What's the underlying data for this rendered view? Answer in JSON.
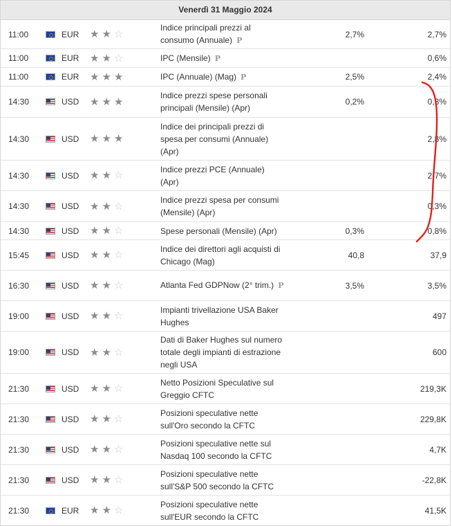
{
  "header": {
    "date": "Venerdì 31 Maggio 2024"
  },
  "icons": {
    "eu": "eu-flag-icon",
    "us": "us-flag-icon",
    "star": "star-icon",
    "prelim": "preliminary-icon"
  },
  "annotation_color": "#e02020",
  "rows": [
    {
      "time": "11:00",
      "flag": "eu",
      "currency": "EUR",
      "importance": 2,
      "event": "Indice principali prezzi al consumo (Annuale)",
      "prelim": true,
      "actual": "",
      "forecast": "2,7%",
      "previous": "2,7%"
    },
    {
      "time": "11:00",
      "flag": "eu",
      "currency": "EUR",
      "importance": 2,
      "event": "IPC (Mensile)",
      "prelim": true,
      "actual": "",
      "forecast": "",
      "previous": "0,6%"
    },
    {
      "time": "11:00",
      "flag": "eu",
      "currency": "EUR",
      "importance": 3,
      "event": "IPC (Annuale) (Mag)",
      "prelim": true,
      "actual": "",
      "forecast": "2,5%",
      "previous": "2,4%"
    },
    {
      "time": "14:30",
      "flag": "us",
      "currency": "USD",
      "importance": 3,
      "event": "Indice prezzi spese personali principali (Mensile) (Apr)",
      "prelim": false,
      "actual": "",
      "forecast": "0,2%",
      "previous": "0,3%"
    },
    {
      "time": "14:30",
      "flag": "us",
      "currency": "USD",
      "importance": 3,
      "event": "Indice dei principali prezzi di spesa per consumi (Annuale) (Apr)",
      "prelim": false,
      "actual": "",
      "forecast": "",
      "previous": "2,8%"
    },
    {
      "time": "14:30",
      "flag": "us",
      "currency": "USD",
      "importance": 2,
      "event": "Indice prezzi PCE (Annuale) (Apr)",
      "prelim": false,
      "actual": "",
      "forecast": "",
      "previous": "2,7%"
    },
    {
      "time": "14:30",
      "flag": "us",
      "currency": "USD",
      "importance": 2,
      "event": "Indice prezzi spesa per consumi (Mensile) (Apr)",
      "prelim": false,
      "actual": "",
      "forecast": "",
      "previous": "0,3%"
    },
    {
      "time": "14:30",
      "flag": "us",
      "currency": "USD",
      "importance": 2,
      "event": "Spese personali (Mensile) (Apr)",
      "prelim": false,
      "actual": "",
      "forecast": "0,3%",
      "previous": "0,8%"
    },
    {
      "time": "15:45",
      "flag": "us",
      "currency": "USD",
      "importance": 2,
      "event": "Indice dei direttori agli acquisti di Chicago (Mag)",
      "prelim": false,
      "actual": "",
      "forecast": "40,8",
      "previous": "37,9"
    },
    {
      "time": "16:30",
      "flag": "us",
      "currency": "USD",
      "importance": 2,
      "event": "Atlanta Fed GDPNow (2° trim.)",
      "prelim": true,
      "actual": "",
      "forecast": "3,5%",
      "previous": "3,5%"
    },
    {
      "time": "19:00",
      "flag": "us",
      "currency": "USD",
      "importance": 2,
      "event": "Impianti trivellazione USA Baker Hughes",
      "prelim": false,
      "actual": "",
      "forecast": "",
      "previous": "497"
    },
    {
      "time": "19:00",
      "flag": "us",
      "currency": "USD",
      "importance": 2,
      "event": "Dati di Baker Hughes sul numero totale degli impianti di estrazione negli USA",
      "prelim": false,
      "actual": "",
      "forecast": "",
      "previous": "600"
    },
    {
      "time": "21:30",
      "flag": "us",
      "currency": "USD",
      "importance": 2,
      "event": "Netto Posizioni Speculative sul Greggio CFTC",
      "prelim": false,
      "actual": "",
      "forecast": "",
      "previous": "219,3K"
    },
    {
      "time": "21:30",
      "flag": "us",
      "currency": "USD",
      "importance": 2,
      "event": "Posizioni speculative nette sull'Oro secondo la CFTC",
      "prelim": false,
      "actual": "",
      "forecast": "",
      "previous": "229,8K"
    },
    {
      "time": "21:30",
      "flag": "us",
      "currency": "USD",
      "importance": 2,
      "event": "Posizioni speculative nette sul Nasdaq 100 secondo la CFTC",
      "prelim": false,
      "actual": "",
      "forecast": "",
      "previous": "4,7K"
    },
    {
      "time": "21:30",
      "flag": "us",
      "currency": "USD",
      "importance": 2,
      "event": "Posizioni speculative nette sull'S&P 500 secondo la CFTC",
      "prelim": false,
      "actual": "",
      "forecast": "",
      "previous": "-22,8K"
    },
    {
      "time": "21:30",
      "flag": "eu",
      "currency": "EUR",
      "importance": 2,
      "event": "Posizioni speculative nette sull'EUR secondo la CFTC",
      "prelim": false,
      "actual": "",
      "forecast": "",
      "previous": "41,5K"
    }
  ]
}
